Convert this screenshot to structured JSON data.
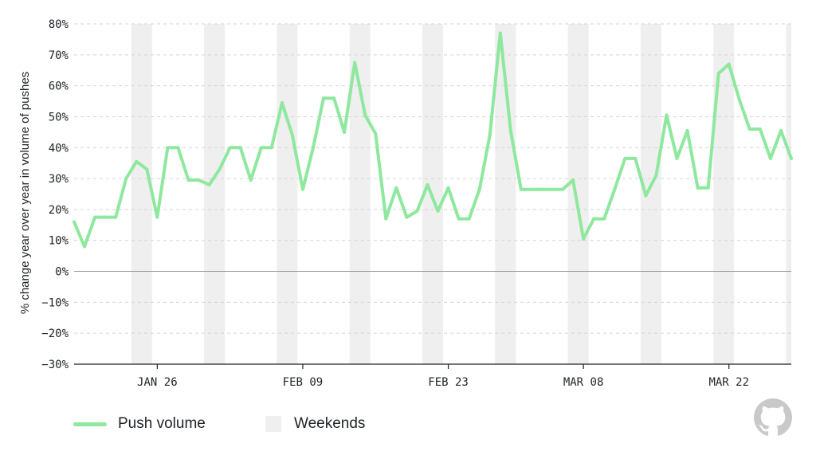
{
  "colors": {
    "line": "#8ee89e",
    "weekend": "#efefef",
    "grid": "#d5d5d5",
    "zero": "#9a9a9a",
    "text": "#1f2328",
    "logo": "#c9c9c9"
  },
  "legend": {
    "push_label": "Push volume",
    "weekend_label": "Weekends"
  },
  "logo": {
    "icon": "github-octocat-icon"
  },
  "chart_data": {
    "type": "line",
    "ylabel": "% change year over year in volume of pushes",
    "ylim": [
      -30,
      80
    ],
    "yticks": [
      80,
      70,
      60,
      50,
      40,
      30,
      20,
      10,
      0,
      -10,
      -20,
      -30
    ],
    "ytick_labels": [
      "80%",
      "70%",
      "60%",
      "50%",
      "40%",
      "30%",
      "20%",
      "10%",
      "0%",
      "−10%",
      "−20%",
      "−30%"
    ],
    "x_start": "2026-01-18",
    "x_end": "2026-03-28",
    "xticks": [
      "2026-01-26",
      "2026-02-09",
      "2026-02-23",
      "2026-03-08",
      "2026-03-22"
    ],
    "xtick_labels": [
      "JAN 26",
      "FEB 09",
      "FEB 23",
      "MAR 08",
      "MAR 22"
    ],
    "weekends": [
      [
        "2026-01-24",
        "2026-01-25"
      ],
      [
        "2026-01-31",
        "2026-02-01"
      ],
      [
        "2026-02-07",
        "2026-02-08"
      ],
      [
        "2026-02-14",
        "2026-02-15"
      ],
      [
        "2026-02-21",
        "2026-02-22"
      ],
      [
        "2026-02-28",
        "2026-03-01"
      ],
      [
        "2026-03-07",
        "2026-03-08"
      ],
      [
        "2026-03-14",
        "2026-03-15"
      ],
      [
        "2026-03-21",
        "2026-03-22"
      ],
      [
        "2026-03-28",
        "2026-03-28"
      ]
    ],
    "grid": true,
    "legend_position": "bottom-left",
    "series": [
      {
        "name": "Push volume",
        "x": [
          "2026-01-18",
          "2026-01-19",
          "2026-01-20",
          "2026-01-21",
          "2026-01-22",
          "2026-01-23",
          "2026-01-24",
          "2026-01-25",
          "2026-01-26",
          "2026-01-27",
          "2026-01-28",
          "2026-01-29",
          "2026-01-30",
          "2026-01-31",
          "2026-02-01",
          "2026-02-02",
          "2026-02-03",
          "2026-02-04",
          "2026-02-05",
          "2026-02-06",
          "2026-02-07",
          "2026-02-08",
          "2026-02-09",
          "2026-02-10",
          "2026-02-11",
          "2026-02-12",
          "2026-02-13",
          "2026-02-14",
          "2026-02-15",
          "2026-02-16",
          "2026-02-17",
          "2026-02-18",
          "2026-02-19",
          "2026-02-20",
          "2026-02-21",
          "2026-02-22",
          "2026-02-23",
          "2026-02-24",
          "2026-02-25",
          "2026-02-26",
          "2026-02-27",
          "2026-02-28",
          "2026-03-01",
          "2026-03-02",
          "2026-03-03",
          "2026-03-04",
          "2026-03-05",
          "2026-03-06",
          "2026-03-07",
          "2026-03-08",
          "2026-03-09",
          "2026-03-10",
          "2026-03-11",
          "2026-03-12",
          "2026-03-13",
          "2026-03-14",
          "2026-03-15",
          "2026-03-16",
          "2026-03-17",
          "2026-03-18",
          "2026-03-19",
          "2026-03-20",
          "2026-03-21",
          "2026-03-22",
          "2026-03-23",
          "2026-03-24",
          "2026-03-25",
          "2026-03-26",
          "2026-03-27",
          "2026-03-28"
        ],
        "values": [
          16,
          8,
          17.5,
          17.5,
          17.5,
          30,
          35.5,
          33,
          17.5,
          40,
          40,
          29.5,
          29.5,
          28,
          33,
          40,
          40,
          29.5,
          40,
          40,
          54.5,
          44,
          26.5,
          40,
          56,
          56,
          45,
          67.5,
          50.5,
          44.5,
          17,
          27,
          17.5,
          19.5,
          28,
          19.5,
          27,
          17,
          17,
          26.5,
          44,
          77,
          45.5,
          26.5,
          26.5,
          26.5,
          26.5,
          26.5,
          29.5,
          10.5,
          17,
          17,
          26.5,
          36.5,
          36.5,
          24.5,
          31,
          50.5,
          36.5,
          45.5,
          27,
          27,
          64,
          67,
          55.5,
          46,
          46,
          36.5,
          45.5,
          36.5
        ]
      }
    ]
  }
}
